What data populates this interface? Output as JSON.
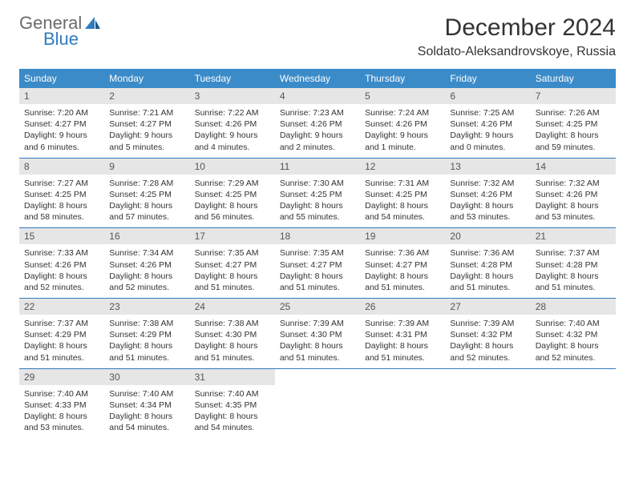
{
  "brand": {
    "word1": "General",
    "word2": "Blue",
    "word1_color": "#6b6b6b",
    "word2_color": "#2f7bbf"
  },
  "title": "December 2024",
  "location": "Soldato-Aleksandrovskoye, Russia",
  "theme": {
    "header_bg": "#3b8bc9",
    "header_fg": "#ffffff",
    "daynum_bg": "#e6e6e6",
    "border_color": "#2f7bbf",
    "page_bg": "#ffffff",
    "text_color": "#333333"
  },
  "weekdays": [
    "Sunday",
    "Monday",
    "Tuesday",
    "Wednesday",
    "Thursday",
    "Friday",
    "Saturday"
  ],
  "days": [
    {
      "n": 1,
      "sunrise": "7:20 AM",
      "sunset": "4:27 PM",
      "daylight": "9 hours and 6 minutes."
    },
    {
      "n": 2,
      "sunrise": "7:21 AM",
      "sunset": "4:27 PM",
      "daylight": "9 hours and 5 minutes."
    },
    {
      "n": 3,
      "sunrise": "7:22 AM",
      "sunset": "4:26 PM",
      "daylight": "9 hours and 4 minutes."
    },
    {
      "n": 4,
      "sunrise": "7:23 AM",
      "sunset": "4:26 PM",
      "daylight": "9 hours and 2 minutes."
    },
    {
      "n": 5,
      "sunrise": "7:24 AM",
      "sunset": "4:26 PM",
      "daylight": "9 hours and 1 minute."
    },
    {
      "n": 6,
      "sunrise": "7:25 AM",
      "sunset": "4:26 PM",
      "daylight": "9 hours and 0 minutes."
    },
    {
      "n": 7,
      "sunrise": "7:26 AM",
      "sunset": "4:25 PM",
      "daylight": "8 hours and 59 minutes."
    },
    {
      "n": 8,
      "sunrise": "7:27 AM",
      "sunset": "4:25 PM",
      "daylight": "8 hours and 58 minutes."
    },
    {
      "n": 9,
      "sunrise": "7:28 AM",
      "sunset": "4:25 PM",
      "daylight": "8 hours and 57 minutes."
    },
    {
      "n": 10,
      "sunrise": "7:29 AM",
      "sunset": "4:25 PM",
      "daylight": "8 hours and 56 minutes."
    },
    {
      "n": 11,
      "sunrise": "7:30 AM",
      "sunset": "4:25 PM",
      "daylight": "8 hours and 55 minutes."
    },
    {
      "n": 12,
      "sunrise": "7:31 AM",
      "sunset": "4:25 PM",
      "daylight": "8 hours and 54 minutes."
    },
    {
      "n": 13,
      "sunrise": "7:32 AM",
      "sunset": "4:26 PM",
      "daylight": "8 hours and 53 minutes."
    },
    {
      "n": 14,
      "sunrise": "7:32 AM",
      "sunset": "4:26 PM",
      "daylight": "8 hours and 53 minutes."
    },
    {
      "n": 15,
      "sunrise": "7:33 AM",
      "sunset": "4:26 PM",
      "daylight": "8 hours and 52 minutes."
    },
    {
      "n": 16,
      "sunrise": "7:34 AM",
      "sunset": "4:26 PM",
      "daylight": "8 hours and 52 minutes."
    },
    {
      "n": 17,
      "sunrise": "7:35 AM",
      "sunset": "4:27 PM",
      "daylight": "8 hours and 51 minutes."
    },
    {
      "n": 18,
      "sunrise": "7:35 AM",
      "sunset": "4:27 PM",
      "daylight": "8 hours and 51 minutes."
    },
    {
      "n": 19,
      "sunrise": "7:36 AM",
      "sunset": "4:27 PM",
      "daylight": "8 hours and 51 minutes."
    },
    {
      "n": 20,
      "sunrise": "7:36 AM",
      "sunset": "4:28 PM",
      "daylight": "8 hours and 51 minutes."
    },
    {
      "n": 21,
      "sunrise": "7:37 AM",
      "sunset": "4:28 PM",
      "daylight": "8 hours and 51 minutes."
    },
    {
      "n": 22,
      "sunrise": "7:37 AM",
      "sunset": "4:29 PM",
      "daylight": "8 hours and 51 minutes."
    },
    {
      "n": 23,
      "sunrise": "7:38 AM",
      "sunset": "4:29 PM",
      "daylight": "8 hours and 51 minutes."
    },
    {
      "n": 24,
      "sunrise": "7:38 AM",
      "sunset": "4:30 PM",
      "daylight": "8 hours and 51 minutes."
    },
    {
      "n": 25,
      "sunrise": "7:39 AM",
      "sunset": "4:30 PM",
      "daylight": "8 hours and 51 minutes."
    },
    {
      "n": 26,
      "sunrise": "7:39 AM",
      "sunset": "4:31 PM",
      "daylight": "8 hours and 51 minutes."
    },
    {
      "n": 27,
      "sunrise": "7:39 AM",
      "sunset": "4:32 PM",
      "daylight": "8 hours and 52 minutes."
    },
    {
      "n": 28,
      "sunrise": "7:40 AM",
      "sunset": "4:32 PM",
      "daylight": "8 hours and 52 minutes."
    },
    {
      "n": 29,
      "sunrise": "7:40 AM",
      "sunset": "4:33 PM",
      "daylight": "8 hours and 53 minutes."
    },
    {
      "n": 30,
      "sunrise": "7:40 AM",
      "sunset": "4:34 PM",
      "daylight": "8 hours and 54 minutes."
    },
    {
      "n": 31,
      "sunrise": "7:40 AM",
      "sunset": "4:35 PM",
      "daylight": "8 hours and 54 minutes."
    }
  ],
  "labels": {
    "sunrise": "Sunrise:",
    "sunset": "Sunset:",
    "daylight": "Daylight:"
  },
  "layout": {
    "cols": 7,
    "rows": 5,
    "start_offset": 0
  }
}
